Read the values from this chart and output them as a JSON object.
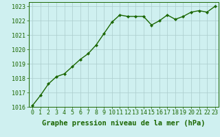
{
  "x": [
    0,
    1,
    2,
    3,
    4,
    5,
    6,
    7,
    8,
    9,
    10,
    11,
    12,
    13,
    14,
    15,
    16,
    17,
    18,
    19,
    20,
    21,
    22,
    23
  ],
  "y": [
    1016.1,
    1016.8,
    1017.6,
    1018.1,
    1018.3,
    1018.8,
    1019.3,
    1019.7,
    1020.3,
    1021.1,
    1021.9,
    1022.4,
    1022.3,
    1022.3,
    1022.3,
    1021.7,
    1022.0,
    1022.4,
    1022.1,
    1022.3,
    1022.6,
    1022.7,
    1022.6,
    1023.0
  ],
  "line_color": "#1a6600",
  "marker": "D",
  "marker_size": 2.2,
  "bg_color": "#cff0f0",
  "grid_color": "#aacccc",
  "ylim": [
    1016,
    1023.3
  ],
  "xlim": [
    -0.5,
    23.5
  ],
  "yticks": [
    1016,
    1017,
    1018,
    1019,
    1020,
    1021,
    1022,
    1023
  ],
  "xticks": [
    0,
    1,
    2,
    3,
    4,
    5,
    6,
    7,
    8,
    9,
    10,
    11,
    12,
    13,
    14,
    15,
    16,
    17,
    18,
    19,
    20,
    21,
    22,
    23
  ],
  "xlabel": "Graphe pression niveau de la mer (hPa)",
  "xlabel_fontsize": 7.5,
  "tick_fontsize": 6.0,
  "line_width": 1.0,
  "fig_width": 3.2,
  "fig_height": 2.0,
  "dpi": 100
}
